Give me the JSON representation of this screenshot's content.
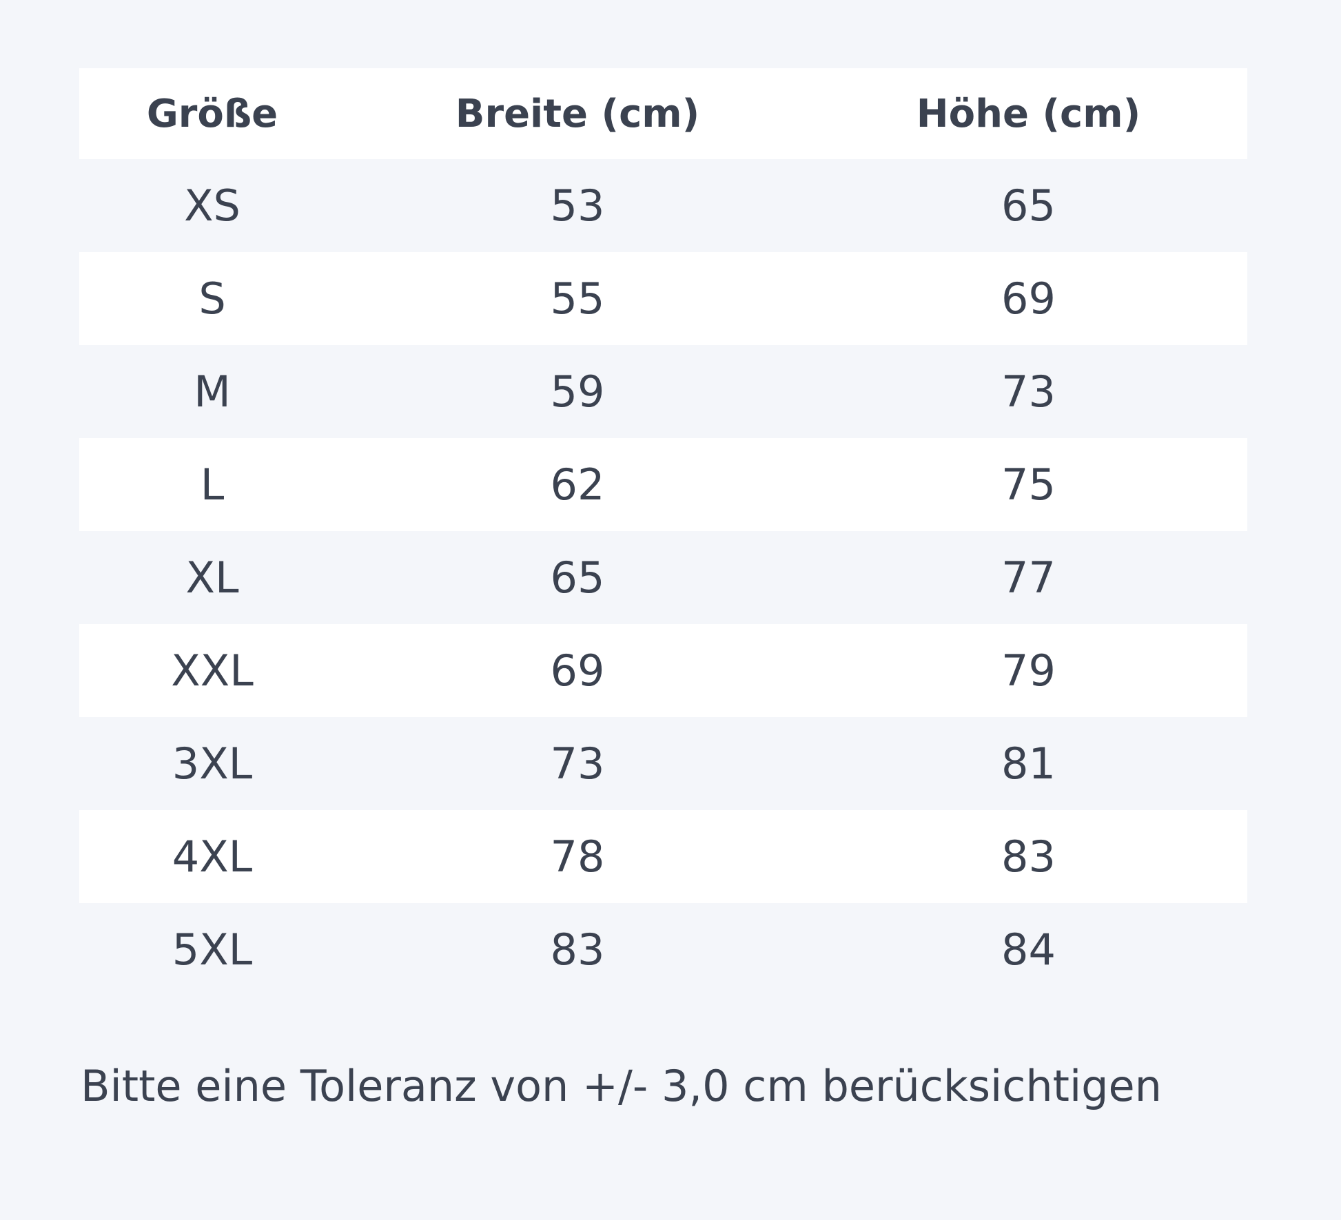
{
  "table": {
    "header": [
      "Größe",
      "Breite (cm)",
      "Höhe (cm)"
    ],
    "rows": [
      [
        "XS",
        53,
        65
      ],
      [
        "S",
        55,
        69
      ],
      [
        "M",
        59,
        73
      ],
      [
        "L",
        62,
        75
      ],
      [
        "XL",
        65,
        77
      ],
      [
        "XXL",
        69,
        79
      ],
      [
        "3XL",
        73,
        81
      ],
      [
        "4XL",
        78,
        83
      ],
      [
        "5XL",
        83,
        84
      ]
    ]
  },
  "note": "Bitte eine Toleranz von +/- 3,0 cm berücksichtigen"
}
